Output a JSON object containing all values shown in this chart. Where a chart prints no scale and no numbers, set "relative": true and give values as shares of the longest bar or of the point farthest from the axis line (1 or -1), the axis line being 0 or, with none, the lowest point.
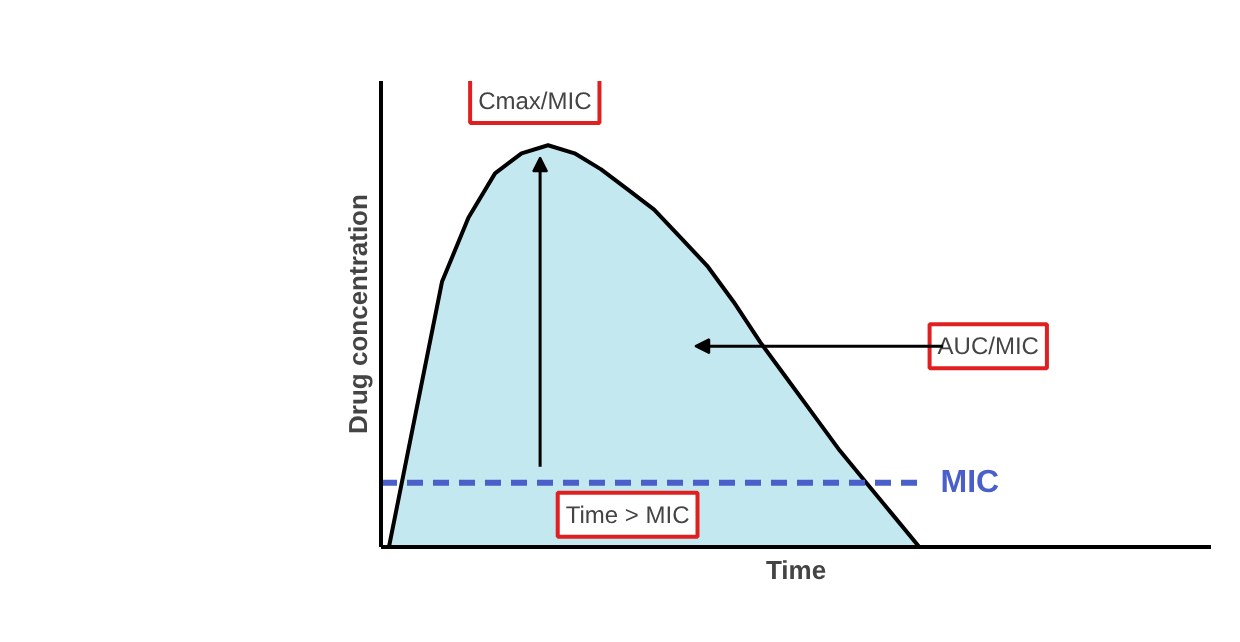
{
  "chart_data": {
    "type": "area",
    "relative": true,
    "xlabel": "Time",
    "ylabel": "Drug concentration",
    "categories": [
      null,
      null,
      null,
      null,
      null,
      null,
      null,
      null,
      null,
      null,
      null,
      null,
      null,
      null,
      null,
      null,
      null,
      null,
      null,
      null,
      null
    ],
    "series": [
      {
        "color": "#c4e8ef",
        "values": [
          0,
          0.33,
          0.66,
          0.82,
          0.93,
          0.98,
          1.0,
          0.98,
          0.94,
          0.89,
          0.84,
          0.77,
          0.7,
          0.61,
          0.51,
          0.42,
          0.33,
          0.24,
          0.16,
          0.08,
          0
        ]
      }
    ],
    "ref_lines": [
      {
        "axis": "y",
        "value": 0.16,
        "label": "MIC",
        "color": "#4a5fc9",
        "line_style": "dashed"
      }
    ],
    "annotations": [
      "Cmax/MIC",
      "AUC/MIC",
      "Time > MIC"
    ]
  }
}
